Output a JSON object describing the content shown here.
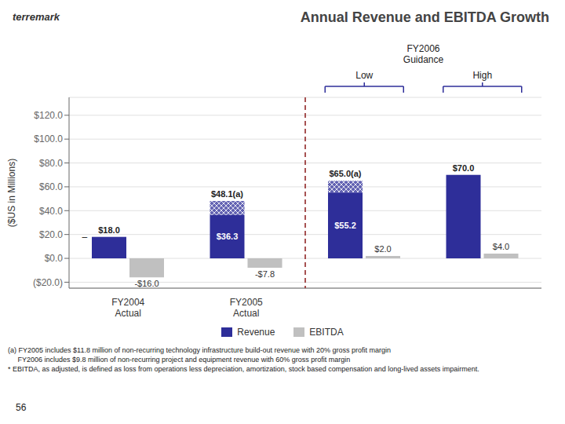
{
  "chart_data": {
    "type": "bar",
    "title": "Annual Revenue and EBITDA Growth",
    "y_label": "($US in Millions)",
    "categories": [
      "FY2004\nActual",
      "FY2005\nActual",
      null,
      null
    ],
    "series": [
      {
        "name": "Revenue",
        "color": "#2E2E99",
        "values": [
          18.0,
          48.1,
          65.0,
          70.0
        ],
        "value_labels": [
          "$18.0",
          "$48.1(a)",
          "$65.0(a)",
          "$70.0"
        ],
        "inner_values": [
          null,
          36.3,
          55.2,
          null
        ],
        "inner_value_labels": [
          null,
          "$36.3",
          "$55.2",
          null
        ]
      },
      {
        "name": "EBITDA",
        "color": "#C0C0C0",
        "values": [
          -16.0,
          -7.8,
          2.0,
          4.0
        ],
        "value_labels": [
          "-$16.0",
          "-$7.8",
          "$2.0",
          "$4.0"
        ]
      }
    ],
    "ylim": [
      -25,
      135
    ],
    "yticks": [
      {
        "value": -20,
        "label": "($20.0)"
      },
      {
        "value": 0,
        "label": "$0.0"
      },
      {
        "value": 20,
        "label": "$20.0"
      },
      {
        "value": 40,
        "label": "$40.0"
      },
      {
        "value": 60,
        "label": "$60.0"
      },
      {
        "value": 80,
        "label": "$80.0"
      },
      {
        "value": 100,
        "label": "$100.0"
      },
      {
        "value": 120,
        "label": "$120.0"
      }
    ],
    "grid": true,
    "legend": "bottom",
    "data_labels": true,
    "annotations": [
      "terremark",
      "FY2006\nGuidance",
      "Low",
      "High",
      "–"
    ],
    "footnotes": [
      "(a) FY2005 includes $11.8 million of non-recurring technology infrastructure build-out revenue with 20% gross profit margin",
      "     FY2006 includes $9.8 million of non-recurring project and equipment revenue with 60% gross profit margin",
      "* EBITDA, as adjusted, is defined as loss from operations less depreciation, amortization, stock based compensation and long-lived assets impairment."
    ],
    "page_number": "56"
  }
}
